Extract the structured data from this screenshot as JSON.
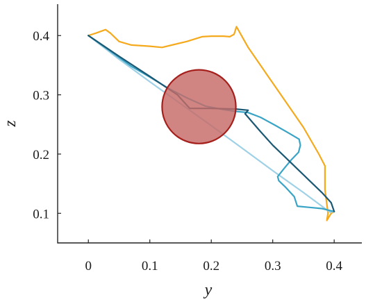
{
  "chart_data": {
    "type": "line",
    "title": "",
    "xlabel": "y",
    "ylabel": "z",
    "xlim": [
      -0.05,
      0.445
    ],
    "ylim": [
      0.05,
      0.453
    ],
    "grid": false,
    "x_ticks": [
      0,
      0.1,
      0.2,
      0.3,
      0.4
    ],
    "x_tick_labels": [
      "0",
      "0.1",
      "0.2",
      "0.3",
      "0.4"
    ],
    "y_ticks": [
      0.1,
      0.2,
      0.3,
      0.4
    ],
    "y_tick_labels": [
      "0.1",
      "0.2",
      "0.3",
      "0.4"
    ],
    "series": [
      {
        "color": "#f5a91c",
        "points": [
          [
            0.0,
            0.4
          ],
          [
            0.012,
            0.404
          ],
          [
            0.028,
            0.41
          ],
          [
            0.036,
            0.404
          ],
          [
            0.05,
            0.39
          ],
          [
            0.07,
            0.384
          ],
          [
            0.1,
            0.382
          ],
          [
            0.12,
            0.38
          ],
          [
            0.14,
            0.385
          ],
          [
            0.16,
            0.39
          ],
          [
            0.185,
            0.398
          ],
          [
            0.2,
            0.399
          ],
          [
            0.22,
            0.399
          ],
          [
            0.23,
            0.398
          ],
          [
            0.237,
            0.402
          ],
          [
            0.241,
            0.415
          ],
          [
            0.26,
            0.38
          ],
          [
            0.29,
            0.335
          ],
          [
            0.32,
            0.29
          ],
          [
            0.35,
            0.245
          ],
          [
            0.375,
            0.2
          ],
          [
            0.385,
            0.18
          ],
          [
            0.385,
            0.14
          ],
          [
            0.39,
            0.1
          ],
          [
            0.388,
            0.088
          ],
          [
            0.395,
            0.1
          ],
          [
            0.4,
            0.103
          ]
        ]
      },
      {
        "color": "#9fd1e6",
        "points": [
          [
            0.0,
            0.4
          ],
          [
            0.05,
            0.36
          ],
          [
            0.1,
            0.322
          ],
          [
            0.15,
            0.285
          ],
          [
            0.2,
            0.248
          ],
          [
            0.25,
            0.21
          ],
          [
            0.3,
            0.172
          ],
          [
            0.35,
            0.135
          ],
          [
            0.393,
            0.102
          ],
          [
            0.4,
            0.103
          ]
        ]
      },
      {
        "color": "#39a4c6",
        "points": [
          [
            0.0,
            0.4
          ],
          [
            0.03,
            0.378
          ],
          [
            0.07,
            0.348
          ],
          [
            0.1,
            0.33
          ],
          [
            0.13,
            0.311
          ],
          [
            0.16,
            0.295
          ],
          [
            0.19,
            0.281
          ],
          [
            0.22,
            0.275
          ],
          [
            0.24,
            0.272
          ],
          [
            0.26,
            0.27
          ],
          [
            0.28,
            0.262
          ],
          [
            0.305,
            0.248
          ],
          [
            0.325,
            0.236
          ],
          [
            0.343,
            0.225
          ],
          [
            0.345,
            0.215
          ],
          [
            0.342,
            0.203
          ],
          [
            0.33,
            0.19
          ],
          [
            0.318,
            0.175
          ],
          [
            0.308,
            0.162
          ],
          [
            0.31,
            0.155
          ],
          [
            0.32,
            0.145
          ],
          [
            0.335,
            0.128
          ],
          [
            0.34,
            0.112
          ],
          [
            0.36,
            0.11
          ],
          [
            0.38,
            0.108
          ],
          [
            0.4,
            0.103
          ]
        ]
      },
      {
        "color": "#1b5874",
        "points": [
          [
            0.0,
            0.4
          ],
          [
            0.05,
            0.365
          ],
          [
            0.1,
            0.331
          ],
          [
            0.145,
            0.3
          ],
          [
            0.165,
            0.277
          ],
          [
            0.2,
            0.277
          ],
          [
            0.24,
            0.276
          ],
          [
            0.26,
            0.274
          ],
          [
            0.255,
            0.268
          ],
          [
            0.28,
            0.238
          ],
          [
            0.3,
            0.215
          ],
          [
            0.32,
            0.195
          ],
          [
            0.34,
            0.175
          ],
          [
            0.36,
            0.155
          ],
          [
            0.38,
            0.135
          ],
          [
            0.395,
            0.118
          ],
          [
            0.4,
            0.103
          ]
        ]
      }
    ],
    "circle": {
      "center": [
        0.18,
        0.28
      ],
      "radius": 0.06,
      "fill": "#c66a67",
      "stroke": "#a51f1c"
    }
  }
}
